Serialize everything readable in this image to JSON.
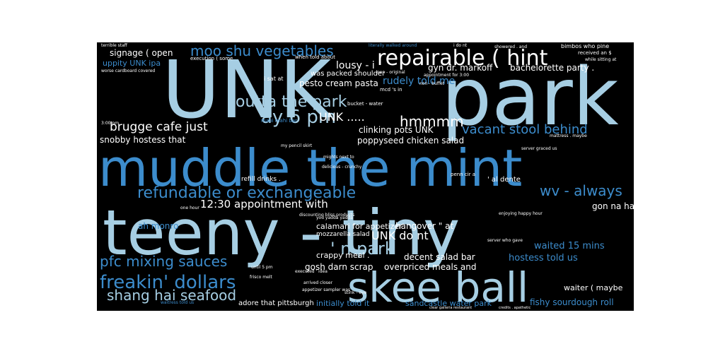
{
  "colors": {
    "background": "#000000",
    "light_blue": "#a6cee3",
    "blue": "#3c8ccc",
    "white": "#ffffff",
    "dark_blue": "#1f5fa0"
  },
  "words": {
    "unk": "UNK",
    "park": "park",
    "muddle": "muddle the mint",
    "teeny": "teeny - tiny",
    "skee": "skee ball",
    "repairable": "repairable ( hint",
    "moo_shu": "moo shu vegetables",
    "refundable": "refundable or exchangeable",
    "freakin": "freakin' dollars",
    "shang_hai": "shang hai seafood",
    "pfc": "pfc mixing sauces",
    "n_park": "' n park",
    "outta": "outta the park",
    "ay_6pm": "ay 6 pm",
    "vacant": "vacant stool behind",
    "brugge": "brugge cafe just",
    "hmmmm": "hmmmm",
    "unk_dots": "UNK .....",
    "wv": "wv - always",
    "snobby": "snobby hostess that",
    "poppyseed": "poppyseed chicken salad",
    "clinking": "clinking pots UNK",
    "pesto": "pesto cream pasta",
    "lousy": "lousy - i",
    "rudely": "rudely told me",
    "gyn": "gyn dr. markoff",
    "bachelorette": "bachelorette party .",
    "signage": "signage ( open",
    "uppity": "uppity UNK ipa",
    "unk_do": "UNK do nt",
    "appointment": "12:30 appointment with",
    "ah_monro": "ah monro",
    "calamari": "calamari for appetizer",
    "hangover": "hangover \" at",
    "gon_na": "gon na have",
    "hostess_told": "hostess told us",
    "waited": "waited 15 mins",
    "decent": "decent salad bar",
    "gosh": "gosh darn scrap",
    "overpriced": "overpriced meals and",
    "crappy": "crappy meal .",
    "initially": "initially told it",
    "sandcastle": "sandcastle water park",
    "fishy": "fishy sourdough roll",
    "adore": "adore that pittsburgh",
    "waiter": "waiter ( maybe",
    "was_packed": "was packed shoulder",
    "refill": "refill drinks .",
    "al_dente": "' al dente",
    "mozzarella": "mozzarella salad",
    "misc": [
      "terrible staff",
      "literally walked around",
      "i do nt",
      "showered . and",
      "bimbos who pine",
      "execution ( some",
      "when told about",
      "appointment for 3:00",
      "received an $",
      "worse cardboard covered",
      "non - original",
      "while sitting at",
      "i sat at",
      "mcd 's in",
      "bucket - water",
      "mahi mahi bar",
      "my pencil skirt",
      "mights next to",
      "delicious - crunchy",
      "penn cir a",
      "server graced us",
      "discounting bliss products",
      "mattress . maybe",
      "until 5 pm",
      "frisco melt",
      "executed ' idea",
      "stink - eye",
      "enjoying happy hour",
      "server who gave",
      "arrived closer",
      "appetizer sampler was",
      "waitress told us",
      "clear galleria restaurant",
      "credits . apathetic",
      "you yadda yadda",
      "one hour",
      "3:00 pm",
      "non - buffet"
    ]
  }
}
